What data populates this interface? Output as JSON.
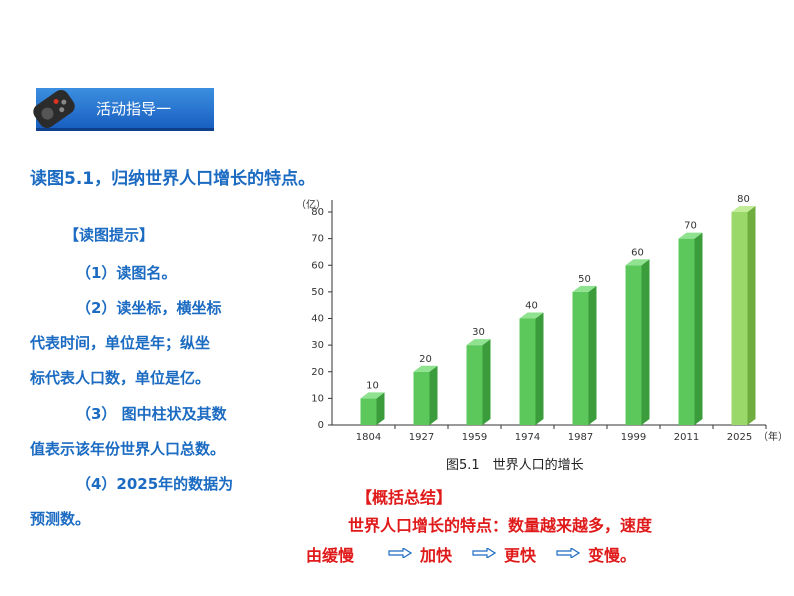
{
  "header": {
    "title": "活动指导一",
    "icon": "remote-control-icon"
  },
  "question": "读图5.1，归纳世界人口增长的特点。",
  "hints": [
    "【读图提示】",
    "（1）读图名。",
    "（2）读坐标，横坐标",
    "代表时间，单位是年；纵坐",
    "标代表人口数，单位是亿。",
    "（3） 图中柱状及其数",
    "值表示该年份世界人口总数。",
    "（4）2025年的数据为",
    "预测数。"
  ],
  "summary": {
    "heading": "【概括总结】",
    "line1": "世界人口增长的特点：数量越来越多，速度",
    "seg1": "由缓慢",
    "seg2": "加快",
    "seg3": "更快",
    "seg4": "变慢。"
  },
  "caption": "图5.1　世界人口的增长",
  "colors": {
    "accent_blue": "#1b6bc2",
    "summary_red": "#e01a1a",
    "bar_green": "#5cc85c",
    "bar_last": "#9ad86a"
  },
  "chart_data": {
    "type": "bar",
    "categories": [
      "1804",
      "1927",
      "1959",
      "1974",
      "1987",
      "1999",
      "2011",
      "2025"
    ],
    "values": [
      10,
      20,
      30,
      40,
      50,
      60,
      70,
      80
    ],
    "ylabel": "（亿）",
    "xlabel": "（年）",
    "ylim": [
      0,
      80
    ],
    "yticks": [
      0,
      10,
      20,
      30,
      40,
      50,
      60,
      70,
      80
    ],
    "grid": false
  }
}
